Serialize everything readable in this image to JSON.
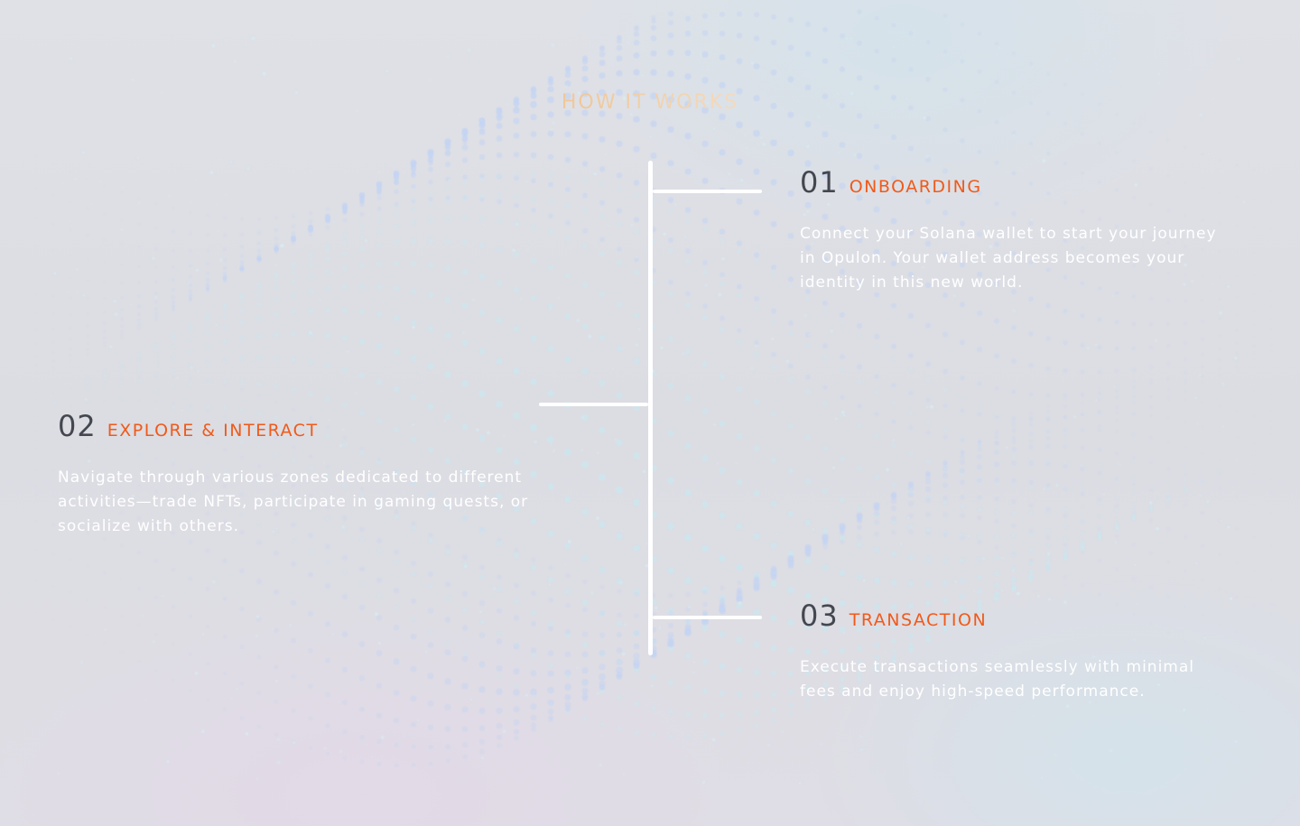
{
  "section": {
    "title": "HOW IT WORKS"
  },
  "steps": [
    {
      "number": "01",
      "title": "ONBOARDING",
      "description": "Connect your Solana wallet to start your journey in Opulon. Your wallet address becomes your identity in this new world."
    },
    {
      "number": "02",
      "title": "EXPLORE & INTERACT",
      "description": "Navigate through various zones dedicated to different activities—trade NFTs, participate in gaming quests, or socialize with others."
    },
    {
      "number": "03",
      "title": "TRANSACTION",
      "description": "Execute transactions seamlessly with minimal fees and enjoy high-speed performance."
    }
  ],
  "colors": {
    "accent": "#f05a1a",
    "number": "#44474f",
    "description": "#ffffff",
    "timeline": "#ffffff",
    "title_gradient_start": "#f2b26e",
    "title_gradient_end": "#f7f0e8",
    "dots": "#c2d4f0"
  }
}
